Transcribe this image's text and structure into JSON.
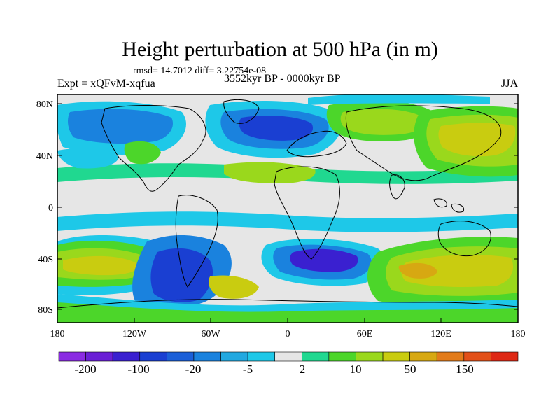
{
  "header": {
    "title": "Height perturbation at 500 hPa (in m)",
    "stats": "rmsd= 14.7012 diff= 3.22754e-08",
    "experiment": "Expt = xQFvM-xqfua",
    "period": "3552kyr BP - 0000kyr BP",
    "season": "JJA"
  },
  "map": {
    "lat_ticks": [
      "80N",
      "40N",
      "0",
      "40S",
      "80S"
    ],
    "lon_ticks": [
      "180",
      "120W",
      "60W",
      "0",
      "60E",
      "120E",
      "180"
    ]
  },
  "colorbar": {
    "colors": [
      "#8a2be2",
      "#6a1fd6",
      "#3a20d0",
      "#1a3fd2",
      "#1b5fd8",
      "#1a82de",
      "#21a8e0",
      "#1ec8e8",
      "#e6e6e6",
      "#20d890",
      "#4cd62a",
      "#9ad81c",
      "#c9cc10",
      "#d7a812",
      "#e27b1a",
      "#e25018",
      "#de2814"
    ],
    "labels": [
      "-200",
      "-100",
      "-20",
      "-5",
      "2",
      "10",
      "50",
      "150"
    ]
  }
}
